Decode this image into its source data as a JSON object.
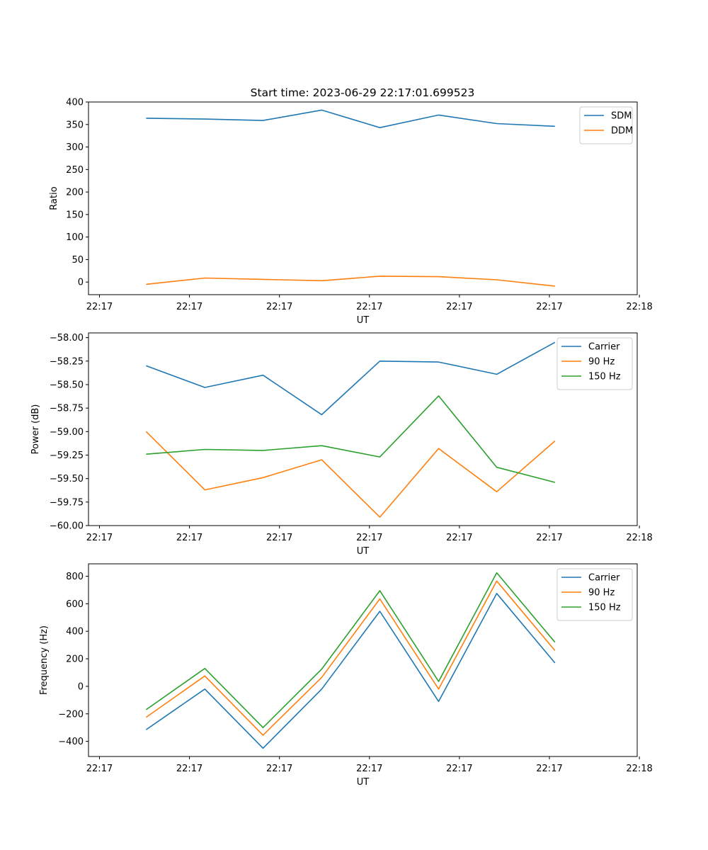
{
  "figure_title": "Start time: 2023-06-29 22:17:01.699523",
  "colors": {
    "blue": "#1f77b4",
    "orange": "#ff7f0e",
    "green": "#2ca02c"
  },
  "chart_data": [
    {
      "type": "line",
      "title": "Start time: 2023-06-29 22:17:01.699523",
      "xlabel": "UT",
      "ylabel": "Ratio",
      "x_tick_labels": [
        "22:17",
        "22:17",
        "22:17",
        "22:17",
        "22:17",
        "22:17",
        "22:18"
      ],
      "xlim": [
        0,
        1
      ],
      "x": [
        0.105,
        0.212,
        0.318,
        0.425,
        0.531,
        0.638,
        0.744,
        0.85
      ],
      "ylim": [
        -28,
        400
      ],
      "yticks": [
        0,
        50,
        100,
        150,
        200,
        250,
        300,
        350,
        400
      ],
      "y_tick_labels": [
        "0",
        "50",
        "100",
        "150",
        "200",
        "250",
        "300",
        "350",
        "400"
      ],
      "legend": "top-right",
      "series": [
        {
          "name": "SDM",
          "color": "#1f77b4",
          "values": [
            364,
            362,
            359,
            382,
            343,
            371,
            352,
            346
          ]
        },
        {
          "name": "DDM",
          "color": "#ff7f0e",
          "values": [
            -5,
            9,
            6,
            3,
            13,
            12,
            5,
            -9
          ]
        }
      ]
    },
    {
      "type": "line",
      "xlabel": "UT",
      "ylabel": "Power (dB)",
      "x_tick_labels": [
        "22:17",
        "22:17",
        "22:17",
        "22:17",
        "22:17",
        "22:17",
        "22:18"
      ],
      "xlim": [
        0,
        1
      ],
      "x": [
        0.105,
        0.212,
        0.318,
        0.425,
        0.531,
        0.638,
        0.744,
        0.85
      ],
      "ylim": [
        -60.0,
        -57.95
      ],
      "yticks": [
        -60.0,
        -59.75,
        -59.5,
        -59.25,
        -59.0,
        -58.75,
        -58.5,
        -58.25,
        -58.0
      ],
      "y_tick_labels": [
        "−60.00",
        "−59.75",
        "−59.50",
        "−59.25",
        "−59.00",
        "−58.75",
        "−58.50",
        "−58.25",
        "−58.00"
      ],
      "legend": "top-right",
      "series": [
        {
          "name": "Carrier",
          "color": "#1f77b4",
          "values": [
            -58.3,
            -58.53,
            -58.4,
            -58.82,
            -58.25,
            -58.26,
            -58.39,
            -58.05
          ]
        },
        {
          "name": "90 Hz",
          "color": "#ff7f0e",
          "values": [
            -59.0,
            -59.62,
            -59.49,
            -59.3,
            -59.91,
            -59.18,
            -59.64,
            -59.1
          ]
        },
        {
          "name": "150 Hz",
          "color": "#2ca02c",
          "values": [
            -59.24,
            -59.19,
            -59.2,
            -59.15,
            -59.27,
            -58.62,
            -59.38,
            -59.54
          ]
        }
      ]
    },
    {
      "type": "line",
      "xlabel": "UT",
      "ylabel": "Frequency (Hz)",
      "x_tick_labels": [
        "22:17",
        "22:17",
        "22:17",
        "22:17",
        "22:17",
        "22:17",
        "22:18"
      ],
      "xlim": [
        0,
        1
      ],
      "x": [
        0.105,
        0.212,
        0.318,
        0.425,
        0.531,
        0.638,
        0.744,
        0.85
      ],
      "ylim": [
        -510,
        890
      ],
      "yticks": [
        -400,
        -200,
        0,
        200,
        400,
        600,
        800
      ],
      "y_tick_labels": [
        "−400",
        "−200",
        "0",
        "200",
        "400",
        "600",
        "800"
      ],
      "legend": "top-right",
      "series": [
        {
          "name": "Carrier",
          "color": "#1f77b4",
          "values": [
            -315,
            -20,
            -450,
            -20,
            545,
            -110,
            675,
            170
          ]
        },
        {
          "name": "90 Hz",
          "color": "#ff7f0e",
          "values": [
            -225,
            75,
            -355,
            65,
            635,
            -20,
            765,
            260
          ]
        },
        {
          "name": "150 Hz",
          "color": "#2ca02c",
          "values": [
            -170,
            130,
            -300,
            125,
            695,
            35,
            825,
            320
          ]
        }
      ]
    }
  ]
}
